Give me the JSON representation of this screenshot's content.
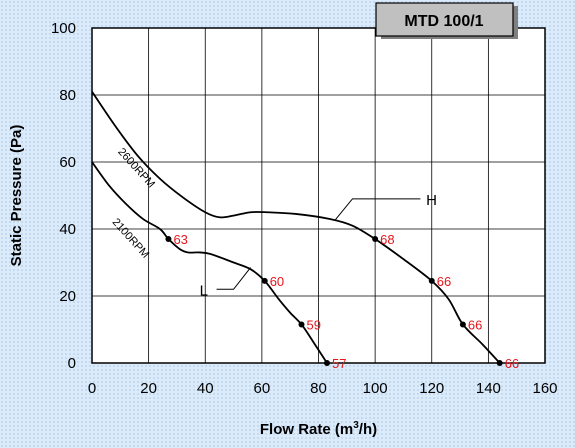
{
  "chart_data": {
    "type": "line",
    "title": "MTD 100/1",
    "xlabel": "Flow Rate (m",
    "xlabel_sup": "3",
    "xlabel_tail": "/h)",
    "ylabel": "Static Pressure (Pa)",
    "xlim": [
      0,
      160
    ],
    "ylim": [
      0,
      100
    ],
    "x_ticks": [
      0,
      20,
      40,
      60,
      80,
      100,
      120,
      140,
      160
    ],
    "y_ticks": [
      0,
      20,
      40,
      60,
      80,
      100
    ],
    "grid": true,
    "colors": {
      "plot_bg": "#ffffff",
      "grid": "#000000",
      "curve": "#000000",
      "point_label": "#e8151b",
      "title_box": "#c0c0c0"
    },
    "series": [
      {
        "name": "2600RPM",
        "curve_label": "H",
        "curve": [
          [
            0,
            81
          ],
          [
            8,
            71
          ],
          [
            16,
            62
          ],
          [
            24,
            55
          ],
          [
            32,
            49.5
          ],
          [
            40,
            45
          ],
          [
            45,
            43.5
          ],
          [
            50,
            44
          ],
          [
            56,
            45
          ],
          [
            62,
            45
          ],
          [
            72,
            44.5
          ],
          [
            84,
            43
          ],
          [
            92,
            41
          ],
          [
            100,
            37
          ],
          [
            110,
            31
          ],
          [
            120,
            24.5
          ],
          [
            126,
            19
          ],
          [
            131,
            11.5
          ],
          [
            138,
            5.5
          ],
          [
            144,
            0
          ]
        ],
        "points": [
          {
            "x": 100,
            "y": 37,
            "label": "68"
          },
          {
            "x": 120,
            "y": 24.5,
            "label": "66"
          },
          {
            "x": 131,
            "y": 11.5,
            "label": "66"
          },
          {
            "x": 144,
            "y": 0,
            "label": "66"
          }
        ]
      },
      {
        "name": "2100RPM",
        "curve_label": "L",
        "curve": [
          [
            0,
            60
          ],
          [
            6,
            53
          ],
          [
            12,
            47.5
          ],
          [
            18,
            43
          ],
          [
            24,
            40
          ],
          [
            27,
            37
          ],
          [
            31,
            34
          ],
          [
            34,
            33
          ],
          [
            38,
            33
          ],
          [
            42,
            32.5
          ],
          [
            50,
            30
          ],
          [
            56,
            28
          ],
          [
            61,
            24.5
          ],
          [
            66,
            19
          ],
          [
            70,
            15
          ],
          [
            74,
            11.5
          ],
          [
            78,
            6.5
          ],
          [
            83,
            0
          ]
        ],
        "points": [
          {
            "x": 27,
            "y": 37,
            "label": "63"
          },
          {
            "x": 61,
            "y": 24.5,
            "label": "60"
          },
          {
            "x": 74,
            "y": 11.5,
            "label": "59"
          },
          {
            "x": 83,
            "y": 0,
            "label": "57"
          }
        ]
      }
    ]
  }
}
